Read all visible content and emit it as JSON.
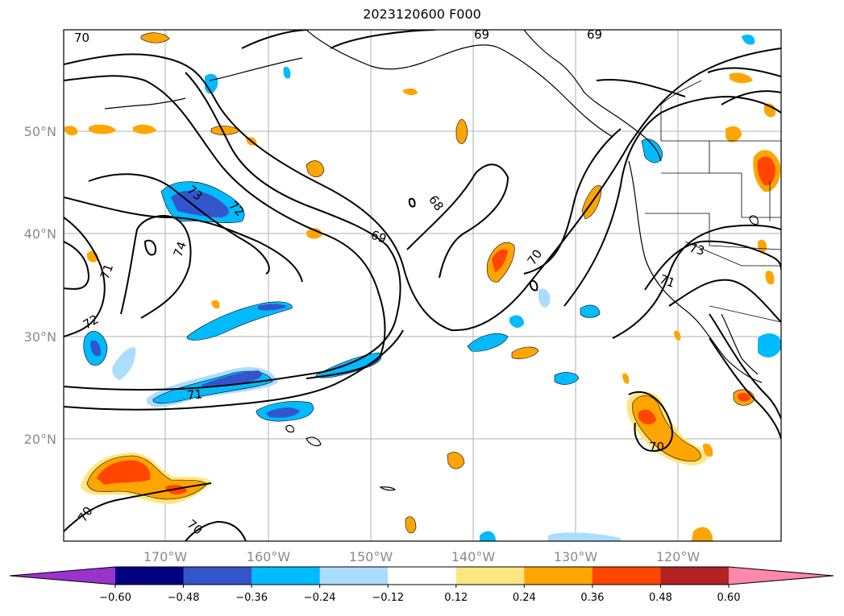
{
  "title": "2023120600 F000",
  "map": {
    "lat_labels": [
      "50°N",
      "40°N",
      "30°N",
      "20°N"
    ],
    "lon_labels": [
      "170°W",
      "160°W",
      "150°W",
      "140°W",
      "130°W",
      "120°W"
    ],
    "contour_labels": [
      "70",
      "69",
      "69",
      "68",
      "69",
      "70",
      "73",
      "72",
      "74",
      "71",
      "72",
      "71",
      "73",
      "71",
      "70",
      "70",
      "70"
    ]
  },
  "colorbar": {
    "ticks": [
      "−0.60",
      "−0.48",
      "−0.36",
      "−0.24",
      "−0.12",
      "0.12",
      "0.24",
      "0.36",
      "0.48",
      "0.60"
    ],
    "colors": [
      "#9933cc",
      "#000080",
      "#3355cc",
      "#00bbff",
      "#aaddff",
      "#ffffff",
      "#ffe680",
      "#ffa500",
      "#ff4500",
      "#b22222",
      "#ff88aa"
    ]
  }
}
